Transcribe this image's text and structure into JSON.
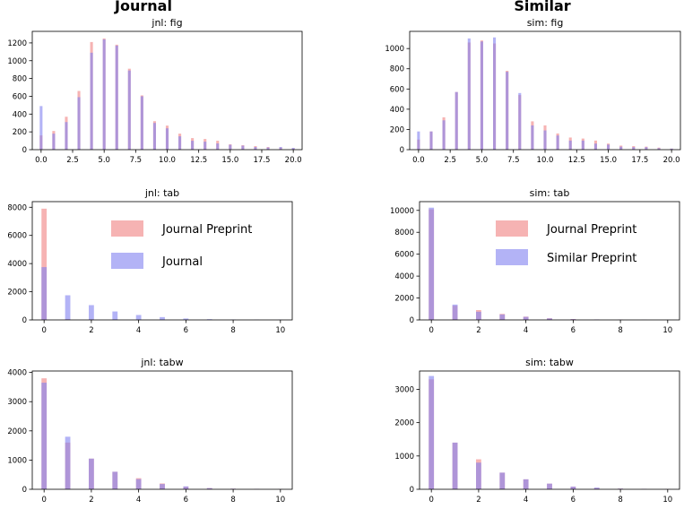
{
  "column_titles": {
    "journal": "Journal",
    "similar": "Similar"
  },
  "colors": {
    "red": "#f08080",
    "blue": "#8080f0"
  },
  "chart_data": [
    {
      "type": "bar",
      "title": "jnl: fig",
      "xlim": [
        -0.7,
        20.7
      ],
      "ylim": [
        0,
        1330
      ],
      "xticks": [
        0,
        2.5,
        5,
        7.5,
        10,
        12.5,
        15,
        17.5,
        20
      ],
      "xtick_labels": [
        "0.0",
        "2.5",
        "5.0",
        "7.5",
        "10.0",
        "12.5",
        "15.0",
        "17.5",
        "20.0"
      ],
      "yticks": [
        0,
        200,
        400,
        600,
        800,
        1000,
        1200
      ],
      "ytick_labels": [
        "0",
        "200",
        "400",
        "600",
        "800",
        "1000",
        "1200"
      ],
      "x": [
        0,
        1,
        2,
        3,
        4,
        5,
        6,
        7,
        8,
        9,
        10,
        11,
        12,
        13,
        14,
        15,
        16,
        17,
        18,
        19,
        20
      ],
      "series": [
        {
          "name": "Journal Preprint",
          "color": "red",
          "values": [
            160,
            210,
            370,
            660,
            1210,
            1250,
            1180,
            910,
            610,
            320,
            270,
            180,
            130,
            120,
            100,
            60,
            50,
            40,
            30,
            25,
            15
          ]
        },
        {
          "name": "Journal",
          "color": "blue",
          "values": [
            490,
            180,
            310,
            590,
            1090,
            1240,
            1170,
            890,
            600,
            300,
            240,
            150,
            100,
            90,
            70,
            55,
            45,
            30,
            25,
            30,
            20
          ]
        }
      ]
    },
    {
      "type": "bar",
      "title": "sim: fig",
      "xlim": [
        -0.7,
        20.7
      ],
      "ylim": [
        0,
        1170
      ],
      "xticks": [
        0,
        2.5,
        5,
        7.5,
        10,
        12.5,
        15,
        17.5,
        20
      ],
      "xtick_labels": [
        "0.0",
        "2.5",
        "5.0",
        "7.5",
        "10.0",
        "12.5",
        "15.0",
        "17.5",
        "20.0"
      ],
      "yticks": [
        0,
        200,
        400,
        600,
        800,
        1000
      ],
      "ytick_labels": [
        "0",
        "200",
        "400",
        "600",
        "800",
        "1000"
      ],
      "x": [
        0,
        1,
        2,
        3,
        4,
        5,
        6,
        7,
        8,
        9,
        10,
        11,
        12,
        13,
        14,
        15,
        16,
        17,
        18,
        19,
        20
      ],
      "series": [
        {
          "name": "Journal Preprint",
          "color": "red",
          "values": [
            100,
            180,
            320,
            570,
            1060,
            1080,
            1050,
            780,
            540,
            280,
            240,
            160,
            120,
            110,
            90,
            60,
            40,
            35,
            30,
            20,
            10
          ]
        },
        {
          "name": "Similar Preprint",
          "color": "blue",
          "values": [
            180,
            180,
            290,
            570,
            1100,
            1070,
            1110,
            770,
            560,
            240,
            190,
            140,
            90,
            90,
            60,
            50,
            30,
            25,
            25,
            15,
            10
          ]
        }
      ]
    },
    {
      "type": "bar",
      "title": "jnl: tab",
      "xlim": [
        -0.5,
        10.5
      ],
      "ylim": [
        0,
        8400
      ],
      "xticks": [
        0,
        2,
        4,
        6,
        8,
        10
      ],
      "xtick_labels": [
        "0",
        "2",
        "4",
        "6",
        "8",
        "10"
      ],
      "yticks": [
        0,
        2000,
        4000,
        6000,
        8000
      ],
      "ytick_labels": [
        "0",
        "2000",
        "4000",
        "6000",
        "8000"
      ],
      "x": [
        0,
        1,
        2,
        3,
        4,
        5,
        6,
        7,
        8,
        9,
        10
      ],
      "legend": {
        "position": "upper-right",
        "entries": [
          "Journal Preprint",
          "Journal"
        ]
      },
      "series": [
        {
          "name": "Journal Preprint",
          "color": "red",
          "values": [
            7900,
            50,
            40,
            30,
            20,
            10,
            5,
            5,
            0,
            0,
            0
          ]
        },
        {
          "name": "Journal",
          "color": "blue",
          "values": [
            3750,
            1750,
            1050,
            600,
            350,
            200,
            100,
            50,
            30,
            20,
            10
          ]
        }
      ]
    },
    {
      "type": "bar",
      "title": "sim: tab",
      "xlim": [
        -0.5,
        10.5
      ],
      "ylim": [
        0,
        10800
      ],
      "xticks": [
        0,
        2,
        4,
        6,
        8,
        10
      ],
      "xtick_labels": [
        "0",
        "2",
        "4",
        "6",
        "8",
        "10"
      ],
      "yticks": [
        0,
        2000,
        4000,
        6000,
        8000,
        10000
      ],
      "ytick_labels": [
        "0",
        "2000",
        "4000",
        "6000",
        "8000",
        "10000"
      ],
      "x": [
        0,
        1,
        2,
        3,
        4,
        5,
        6,
        7,
        8,
        9,
        10
      ],
      "legend": {
        "position": "upper-right",
        "entries": [
          "Journal Preprint",
          "Similar Preprint"
        ]
      },
      "series": [
        {
          "name": "Journal Preprint",
          "color": "red",
          "values": [
            10100,
            1300,
            900,
            550,
            300,
            150,
            80,
            40,
            20,
            10,
            5
          ]
        },
        {
          "name": "Similar Preprint",
          "color": "blue",
          "values": [
            10250,
            1400,
            750,
            500,
            280,
            140,
            70,
            40,
            20,
            10,
            5
          ]
        }
      ]
    },
    {
      "type": "bar",
      "title": "jnl: tabw",
      "xlim": [
        -0.5,
        10.5
      ],
      "ylim": [
        0,
        4050
      ],
      "xticks": [
        0,
        2,
        4,
        6,
        8,
        10
      ],
      "xtick_labels": [
        "0",
        "2",
        "4",
        "6",
        "8",
        "10"
      ],
      "yticks": [
        0,
        1000,
        2000,
        3000,
        4000
      ],
      "ytick_labels": [
        "0",
        "1000",
        "2000",
        "3000",
        "4000"
      ],
      "x": [
        0,
        1,
        2,
        3,
        4,
        5,
        6,
        7,
        8,
        9,
        10
      ],
      "series": [
        {
          "name": "Journal Preprint",
          "color": "red",
          "values": [
            3800,
            1600,
            1050,
            600,
            380,
            200,
            90,
            40,
            20,
            10,
            5
          ]
        },
        {
          "name": "Journal",
          "color": "blue",
          "values": [
            3650,
            1800,
            1050,
            600,
            350,
            180,
            100,
            40,
            20,
            10,
            5
          ]
        }
      ]
    },
    {
      "type": "bar",
      "title": "sim: tabw",
      "xlim": [
        -0.5,
        10.5
      ],
      "ylim": [
        0,
        3550
      ],
      "xticks": [
        0,
        2,
        4,
        6,
        8,
        10
      ],
      "xtick_labels": [
        "0",
        "2",
        "4",
        "6",
        "8",
        "10"
      ],
      "yticks": [
        0,
        1000,
        2000,
        3000
      ],
      "ytick_labels": [
        "0",
        "1000",
        "2000",
        "3000"
      ],
      "x": [
        0,
        1,
        2,
        3,
        4,
        5,
        6,
        7,
        8,
        9,
        10
      ],
      "series": [
        {
          "name": "Journal Preprint",
          "color": "red",
          "values": [
            3300,
            1400,
            900,
            500,
            300,
            170,
            80,
            40,
            20,
            10,
            5
          ]
        },
        {
          "name": "Similar Preprint",
          "color": "blue",
          "values": [
            3400,
            1400,
            800,
            500,
            300,
            170,
            80,
            50,
            20,
            10,
            5
          ]
        }
      ]
    }
  ]
}
